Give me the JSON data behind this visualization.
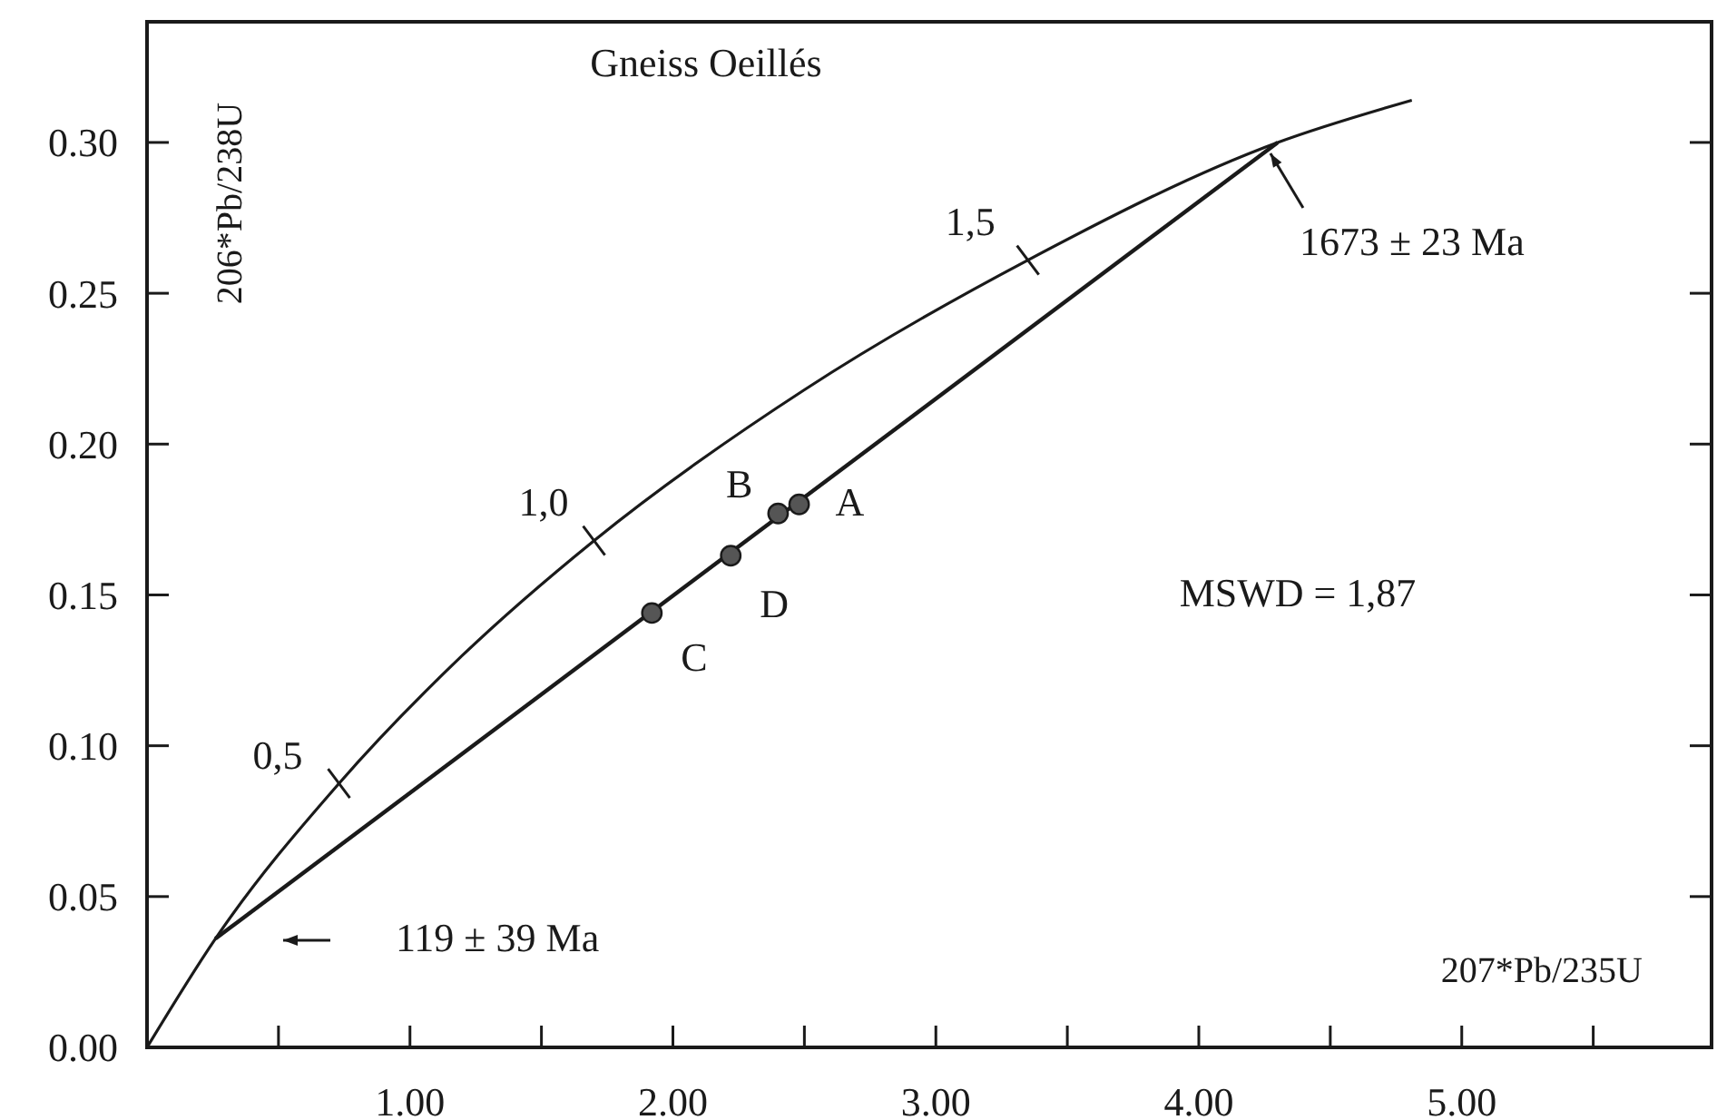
{
  "chart_data": {
    "type": "line",
    "title": "Gneiss Oeillés",
    "xlabel": "207*Pb/235U",
    "ylabel": "206*Pb/238U",
    "xlim": [
      0,
      5.95
    ],
    "ylim": [
      0,
      0.34
    ],
    "xticks": [
      {
        "value": 0.5,
        "label": null
      },
      {
        "value": 1,
        "label": "1.00"
      },
      {
        "value": 1.5,
        "label": null
      },
      {
        "value": 2,
        "label": "2.00"
      },
      {
        "value": 2.5,
        "label": null
      },
      {
        "value": 3,
        "label": "3.00"
      },
      {
        "value": 3.5,
        "label": null
      },
      {
        "value": 4,
        "label": "4.00"
      },
      {
        "value": 4.5,
        "label": null
      },
      {
        "value": 5,
        "label": "5.00"
      },
      {
        "value": 5.5,
        "label": null
      }
    ],
    "yticks": [
      {
        "value": 0,
        "label": "0.00"
      },
      {
        "value": 0.05,
        "label": "0.05"
      },
      {
        "value": 0.1,
        "label": "0.10"
      },
      {
        "value": 0.15,
        "label": "0.15"
      },
      {
        "value": 0.2,
        "label": "0.20"
      },
      {
        "value": 0.25,
        "label": "0.25"
      },
      {
        "value": 0.3,
        "label": "0.30"
      }
    ],
    "grid": false,
    "series": [
      {
        "color": "#1a1a1a",
        "x": [
          0,
          0.26,
          0.73,
          1.2,
          1.7,
          2.5,
          3.35,
          4.3,
          4.81
        ],
        "values": [
          0,
          0.036,
          0.0875,
          0.13,
          0.168,
          0.218,
          0.261,
          0.3,
          0.314
        ]
      },
      {
        "color": "#1a1a1a",
        "x": [
          0.26,
          4.3
        ],
        "values": [
          0.036,
          0.3
        ]
      },
      {
        "type": "scatter",
        "color": "#555555",
        "marker": "circle",
        "x": [
          2.48,
          2.4,
          1.92,
          2.22
        ],
        "values": [
          0.18,
          0.177,
          0.144,
          0.163
        ]
      }
    ],
    "annotations": [
      {
        "text": "0,5",
        "x": 0.73,
        "y": 0.0875
      },
      {
        "text": "1,0",
        "x": 1.7,
        "y": 0.168
      },
      {
        "text": "1,5",
        "x": 3.35,
        "y": 0.261
      },
      {
        "text": "A",
        "x": 2.48,
        "y": 0.18
      },
      {
        "text": "B",
        "x": 2.4,
        "y": 0.177
      },
      {
        "text": "C",
        "x": 1.92,
        "y": 0.144
      },
      {
        "text": "D",
        "x": 2.22,
        "y": 0.163
      },
      {
        "text": "1673 ± 23 Ma",
        "x": 4.3,
        "y": 0.3
      },
      "119 ± 39 Ma",
      "MSWD = 1,87"
    ]
  }
}
